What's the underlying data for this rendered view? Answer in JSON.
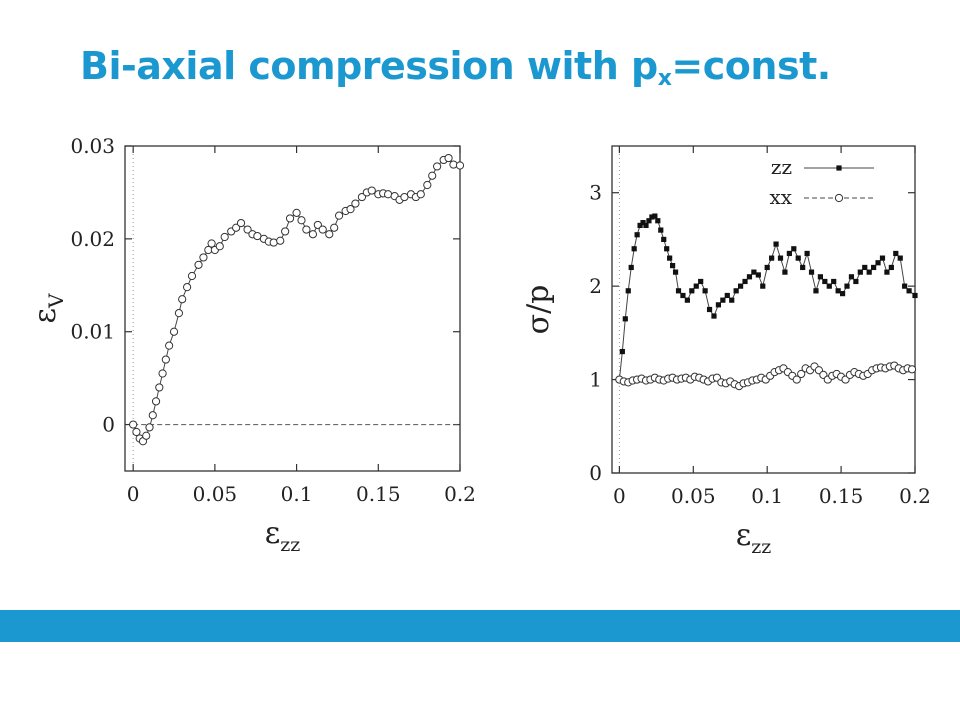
{
  "slide": {
    "title_main": "Bi-axial compression with p",
    "title_sub": "x",
    "title_tail": "=const.",
    "title_color": "#1a98cf",
    "footer_color": "#1a98cf"
  },
  "chart_data": [
    {
      "type": "scatter",
      "ylabel_symbol": "ε",
      "ylabel_sub": "V",
      "xlabel_symbol": "ε",
      "xlabel_sub": "zz",
      "xlim": [
        -0.005,
        0.2
      ],
      "ylim": [
        -0.005,
        0.03
      ],
      "xticks": [
        0,
        0.05,
        0.1,
        0.15,
        0.2
      ],
      "xtick_labels": [
        "0",
        "0.05",
        "0.1",
        "0.15",
        "0.2"
      ],
      "yticks": [
        0,
        0.01,
        0.02,
        0.03
      ],
      "ytick_labels": [
        "0",
        "0.01",
        "0.02",
        "0.03"
      ],
      "reference_line_y": 0,
      "series": [
        {
          "marker": "open-circle",
          "x": [
            0,
            0.002,
            0.004,
            0.006,
            0.008,
            0.01,
            0.012,
            0.014,
            0.016,
            0.018,
            0.02,
            0.022,
            0.025,
            0.028,
            0.03,
            0.033,
            0.036,
            0.04,
            0.043,
            0.046,
            0.048,
            0.05,
            0.053,
            0.056,
            0.06,
            0.063,
            0.066,
            0.07,
            0.073,
            0.076,
            0.08,
            0.083,
            0.086,
            0.09,
            0.093,
            0.096,
            0.1,
            0.103,
            0.106,
            0.11,
            0.113,
            0.116,
            0.12,
            0.123,
            0.126,
            0.13,
            0.133,
            0.136,
            0.14,
            0.143,
            0.146,
            0.15,
            0.153,
            0.156,
            0.16,
            0.163,
            0.166,
            0.17,
            0.173,
            0.176,
            0.18,
            0.183,
            0.186,
            0.19,
            0.193,
            0.196,
            0.2
          ],
          "y": [
            0,
            -0.0008,
            -0.0015,
            -0.0018,
            -0.0012,
            -0.0003,
            0.001,
            0.0025,
            0.004,
            0.0055,
            0.007,
            0.0085,
            0.01,
            0.012,
            0.0135,
            0.0148,
            0.016,
            0.0172,
            0.018,
            0.0188,
            0.0195,
            0.0188,
            0.0192,
            0.0202,
            0.0208,
            0.0212,
            0.0217,
            0.021,
            0.0205,
            0.0203,
            0.02,
            0.0197,
            0.0196,
            0.0198,
            0.0208,
            0.0222,
            0.0228,
            0.022,
            0.021,
            0.0205,
            0.0215,
            0.021,
            0.0205,
            0.0212,
            0.0225,
            0.023,
            0.0232,
            0.0238,
            0.0245,
            0.025,
            0.0252,
            0.0248,
            0.0249,
            0.0248,
            0.0246,
            0.0242,
            0.0245,
            0.0248,
            0.0245,
            0.0248,
            0.0258,
            0.0268,
            0.0278,
            0.0285,
            0.0287,
            0.028,
            0.0279
          ]
        }
      ]
    },
    {
      "type": "line",
      "ylabel": "σ/p",
      "xlabel_symbol": "ε",
      "xlabel_sub": "zz",
      "xlim": [
        -0.005,
        0.2
      ],
      "ylim": [
        0,
        3.5
      ],
      "xticks": [
        0,
        0.05,
        0.1,
        0.15,
        0.2
      ],
      "xtick_labels": [
        "0",
        "0.05",
        "0.1",
        "0.15",
        "0.2"
      ],
      "yticks": [
        0,
        1,
        2,
        3
      ],
      "ytick_labels": [
        "0",
        "1",
        "2",
        "3"
      ],
      "legend_position": "top-right",
      "series": [
        {
          "name": "zz",
          "marker": "filled-square",
          "line": "solid",
          "x": [
            0,
            0.002,
            0.004,
            0.006,
            0.008,
            0.01,
            0.012,
            0.014,
            0.016,
            0.018,
            0.02,
            0.022,
            0.024,
            0.026,
            0.028,
            0.03,
            0.032,
            0.034,
            0.036,
            0.038,
            0.04,
            0.043,
            0.046,
            0.049,
            0.052,
            0.055,
            0.058,
            0.061,
            0.064,
            0.067,
            0.07,
            0.073,
            0.076,
            0.079,
            0.082,
            0.085,
            0.088,
            0.091,
            0.094,
            0.097,
            0.1,
            0.103,
            0.106,
            0.109,
            0.112,
            0.115,
            0.118,
            0.121,
            0.124,
            0.127,
            0.13,
            0.133,
            0.136,
            0.139,
            0.142,
            0.145,
            0.148,
            0.151,
            0.154,
            0.157,
            0.16,
            0.163,
            0.166,
            0.169,
            0.172,
            0.175,
            0.178,
            0.181,
            0.184,
            0.187,
            0.19,
            0.193,
            0.196,
            0.2
          ],
          "y": [
            1.0,
            1.3,
            1.65,
            1.95,
            2.2,
            2.4,
            2.55,
            2.65,
            2.68,
            2.65,
            2.7,
            2.74,
            2.75,
            2.7,
            2.6,
            2.5,
            2.4,
            2.3,
            2.22,
            2.15,
            1.95,
            1.9,
            1.85,
            1.95,
            2.0,
            2.05,
            1.95,
            1.75,
            1.68,
            1.8,
            1.85,
            1.9,
            1.85,
            1.95,
            2.0,
            2.05,
            2.1,
            2.15,
            2.12,
            2.0,
            2.2,
            2.3,
            2.45,
            2.3,
            2.15,
            2.35,
            2.4,
            2.3,
            2.2,
            2.35,
            2.15,
            1.95,
            2.1,
            2.05,
            2.0,
            2.05,
            1.95,
            1.92,
            2.0,
            2.1,
            2.05,
            2.15,
            2.2,
            2.15,
            2.2,
            2.25,
            2.3,
            2.15,
            2.2,
            2.35,
            2.3,
            2.0,
            1.95,
            1.9
          ]
        },
        {
          "name": "xx",
          "marker": "open-circle",
          "line": "dashed",
          "x": [
            0,
            0.003,
            0.006,
            0.009,
            0.012,
            0.015,
            0.018,
            0.021,
            0.024,
            0.027,
            0.03,
            0.033,
            0.036,
            0.039,
            0.042,
            0.045,
            0.048,
            0.051,
            0.054,
            0.057,
            0.06,
            0.063,
            0.066,
            0.069,
            0.072,
            0.075,
            0.078,
            0.081,
            0.084,
            0.087,
            0.09,
            0.093,
            0.096,
            0.099,
            0.102,
            0.105,
            0.108,
            0.111,
            0.114,
            0.117,
            0.12,
            0.123,
            0.126,
            0.129,
            0.132,
            0.135,
            0.138,
            0.141,
            0.144,
            0.147,
            0.15,
            0.153,
            0.156,
            0.159,
            0.162,
            0.165,
            0.168,
            0.171,
            0.174,
            0.177,
            0.18,
            0.183,
            0.186,
            0.189,
            0.192,
            0.195,
            0.198
          ],
          "y": [
            1.0,
            0.98,
            0.97,
            0.99,
            1.0,
            1.01,
            0.99,
            1.0,
            1.02,
            1.0,
            0.99,
            1.01,
            1.02,
            1.0,
            1.01,
            1.02,
            1.0,
            1.03,
            1.02,
            1.0,
            0.98,
            1.01,
            1.02,
            0.97,
            0.96,
            0.98,
            0.95,
            0.93,
            0.96,
            0.97,
            0.99,
            1.0,
            1.02,
            1.0,
            1.04,
            1.08,
            1.1,
            1.12,
            1.08,
            1.04,
            1.0,
            1.06,
            1.12,
            1.1,
            1.14,
            1.1,
            1.05,
            1.0,
            1.04,
            1.06,
            1.03,
            1.0,
            1.05,
            1.08,
            1.06,
            1.04,
            1.06,
            1.1,
            1.12,
            1.13,
            1.12,
            1.14,
            1.15,
            1.12,
            1.1,
            1.12,
            1.11
          ]
        }
      ]
    }
  ]
}
